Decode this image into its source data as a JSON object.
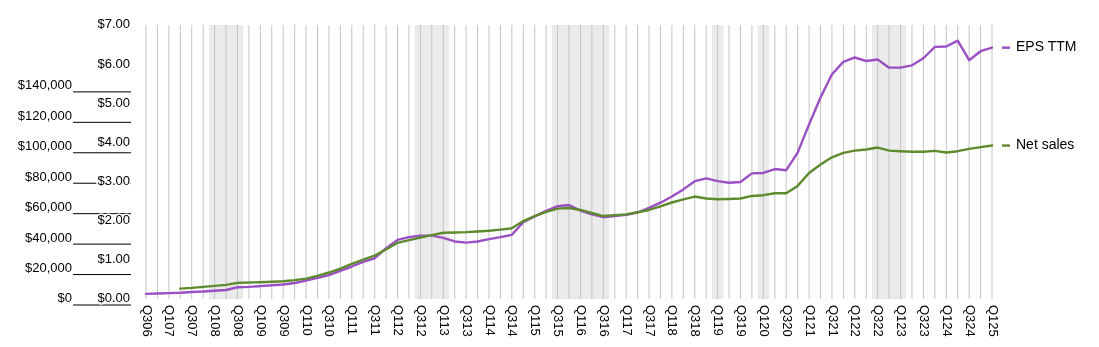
{
  "chart_data": {
    "type": "line",
    "categories": [
      "Q306",
      null,
      "Q107",
      null,
      "Q307",
      null,
      "Q108",
      null,
      "Q308",
      null,
      "Q109",
      null,
      "Q309",
      null,
      "Q110",
      null,
      "Q310",
      null,
      "Q111",
      null,
      "Q311",
      null,
      "Q112",
      null,
      "Q312",
      null,
      "Q113",
      null,
      "Q313",
      null,
      "Q114",
      null,
      "Q314",
      null,
      "Q115",
      null,
      "Q315",
      null,
      "Q116",
      null,
      "Q316",
      null,
      "Q117",
      null,
      "Q317",
      null,
      "Q118",
      null,
      "Q318",
      null,
      "Q119",
      null,
      "Q319",
      null,
      "Q120",
      null,
      "Q320",
      null,
      "Q121",
      null,
      "Q321",
      null,
      "Q122",
      null,
      "Q322",
      null,
      "Q123",
      null,
      "Q323",
      null,
      "Q124",
      null,
      "Q324",
      null,
      "Q125"
    ],
    "series": [
      {
        "name": "EPS TTM",
        "color": "#9b4fc4",
        "axis": "y2",
        "values": [
          0.13,
          0.14,
          0.15,
          0.16,
          0.18,
          0.19,
          0.21,
          0.23,
          0.3,
          0.31,
          0.33,
          0.35,
          0.37,
          0.41,
          0.47,
          0.54,
          0.61,
          0.72,
          0.83,
          0.95,
          1.04,
          1.3,
          1.51,
          1.58,
          1.62,
          1.62,
          1.56,
          1.47,
          1.44,
          1.47,
          1.53,
          1.58,
          1.64,
          1.96,
          2.11,
          2.25,
          2.37,
          2.4,
          2.26,
          2.16,
          2.09,
          2.12,
          2.15,
          2.21,
          2.33,
          2.46,
          2.62,
          2.8,
          3.01,
          3.08,
          3.01,
          2.97,
          2.99,
          3.21,
          3.22,
          3.32,
          3.29,
          3.74,
          4.46,
          5.15,
          5.74,
          6.06,
          6.17,
          6.08,
          6.12,
          5.91,
          5.91,
          5.97,
          6.15,
          6.44,
          6.45,
          6.6,
          6.1,
          6.33,
          6.42
        ]
      },
      {
        "name": "Net sales",
        "color": "#5e8a2e",
        "values": [
          null,
          null,
          null,
          6800,
          7300,
          8000,
          8600,
          9300,
          10600,
          10800,
          11000,
          11300,
          11700,
          12400,
          13400,
          15200,
          17400,
          20000,
          23000,
          25800,
          28500,
          32500,
          36900,
          38700,
          40400,
          42000,
          43500,
          43700,
          43900,
          44300,
          44800,
          45600,
          46500,
          51200,
          54500,
          57200,
          59400,
          59800,
          58500,
          56500,
          54500,
          55000,
          55600,
          57000,
          58500,
          60900,
          63400,
          65400,
          67300,
          66000,
          65500,
          65700,
          66000,
          67700,
          68200,
          69500,
          69500,
          74300,
          82800,
          88300,
          93100,
          96000,
          97500,
          98200,
          99500,
          97500,
          97100,
          96700,
          96700,
          97300,
          96200,
          97100,
          98600,
          99800,
          100800
        ]
      }
    ],
    "ylim": [
      0,
      180000
    ],
    "yticks": [
      {
        "value": 0,
        "label": "$0"
      },
      {
        "value": 20000,
        "label": "$20,000"
      },
      {
        "value": 40000,
        "label": "$40,000"
      },
      {
        "value": 60000,
        "label": "$60,000"
      },
      {
        "value": 80000,
        "label": "$80,000"
      },
      {
        "value": 100000,
        "label": "$100,000"
      },
      {
        "value": 120000,
        "label": "$120,000"
      },
      {
        "value": 140000,
        "label": "$140,000"
      }
    ],
    "y2lim": [
      0,
      7
    ],
    "y2ticks": [
      {
        "value": 0,
        "label": "$0.00"
      },
      {
        "value": 1,
        "label": "$1.00"
      },
      {
        "value": 2,
        "label": "$2.00"
      },
      {
        "value": 3,
        "label": "$3.00"
      },
      {
        "value": 4,
        "label": "$4.00"
      },
      {
        "value": 5,
        "label": "$5.00"
      },
      {
        "value": 6,
        "label": "$6.00"
      },
      {
        "value": 7,
        "label": "$7.00"
      }
    ],
    "bands": [
      {
        "axis": "x",
        "from": "Q108",
        "to": "Q308",
        "color": "#ebebeb"
      },
      {
        "axis": "x",
        "from": "Q312",
        "to": "Q113",
        "color": "#ebebeb"
      },
      {
        "axis": "x",
        "from": "Q315",
        "to": "Q316",
        "color": "#ebebeb"
      },
      {
        "axis": "x",
        "from": "Q119",
        "to": "Q119",
        "color": "#ebebeb"
      },
      {
        "axis": "x",
        "from": "Q120",
        "to": "Q120",
        "color": "#ebebeb"
      },
      {
        "axis": "x",
        "from": "Q322",
        "to": "Q123",
        "color": "#ebebeb"
      }
    ],
    "grid": "x",
    "legend": "right",
    "line_style": "solid",
    "marker": "none"
  }
}
